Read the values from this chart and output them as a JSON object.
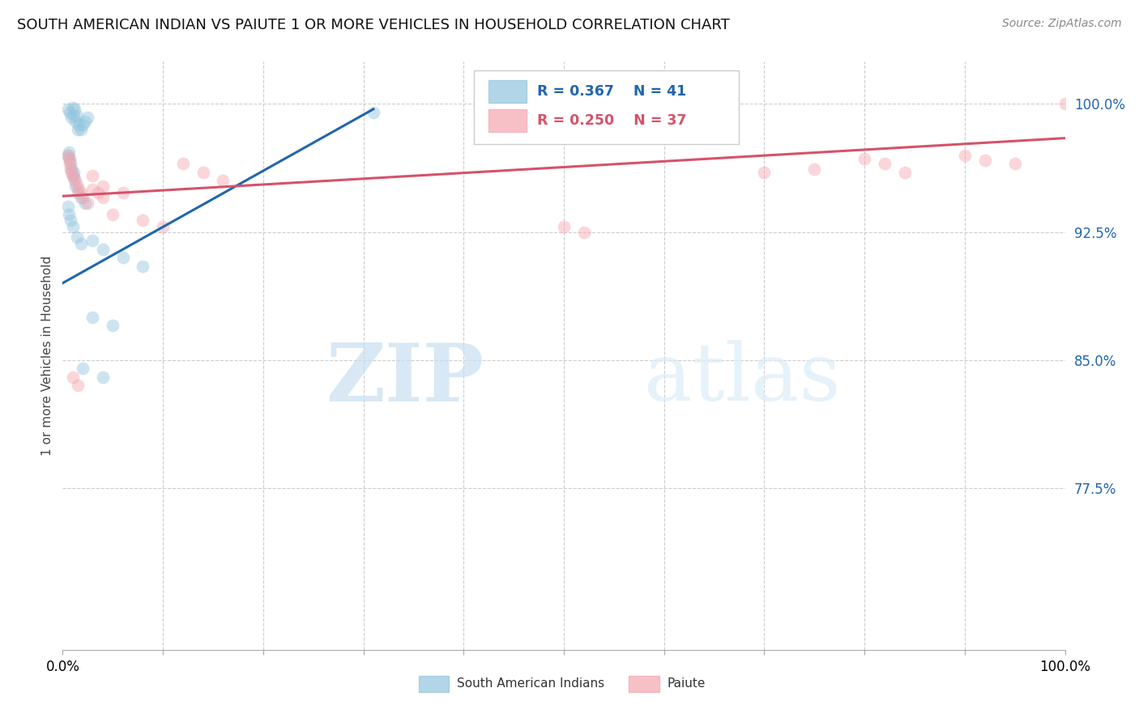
{
  "title": "SOUTH AMERICAN INDIAN VS PAIUTE 1 OR MORE VEHICLES IN HOUSEHOLD CORRELATION CHART",
  "source": "Source: ZipAtlas.com",
  "ylabel": "1 or more Vehicles in Household",
  "ytick_values": [
    1.0,
    0.925,
    0.85,
    0.775
  ],
  "xlim": [
    0.0,
    1.0
  ],
  "ylim": [
    0.68,
    1.025
  ],
  "legend1_r": "R = 0.367",
  "legend1_n": "N = 41",
  "legend2_r": "R = 0.250",
  "legend2_n": "N = 37",
  "blue_color": "#92c5de",
  "pink_color": "#f4a6b0",
  "blue_line_color": "#2166ac",
  "pink_line_color": "#d6526a",
  "blue_scatter_x": [
    0.005,
    0.007,
    0.009,
    0.01,
    0.011,
    0.012,
    0.013,
    0.014,
    0.015,
    0.016,
    0.018,
    0.02,
    0.022,
    0.025,
    0.005,
    0.006,
    0.007,
    0.008,
    0.009,
    0.01,
    0.011,
    0.012,
    0.013,
    0.015,
    0.018,
    0.022,
    0.005,
    0.006,
    0.008,
    0.01,
    0.014,
    0.018,
    0.03,
    0.04,
    0.06,
    0.08,
    0.03,
    0.05,
    0.02,
    0.04,
    0.31
  ],
  "blue_scatter_y": [
    0.997,
    0.995,
    0.992,
    0.998,
    0.993,
    0.997,
    0.99,
    0.993,
    0.985,
    0.988,
    0.985,
    0.988,
    0.99,
    0.992,
    0.97,
    0.972,
    0.968,
    0.965,
    0.962,
    0.958,
    0.96,
    0.956,
    0.952,
    0.948,
    0.945,
    0.942,
    0.94,
    0.935,
    0.932,
    0.928,
    0.922,
    0.918,
    0.92,
    0.915,
    0.91,
    0.905,
    0.875,
    0.87,
    0.845,
    0.84,
    0.995
  ],
  "pink_scatter_x": [
    0.005,
    0.006,
    0.007,
    0.008,
    0.009,
    0.01,
    0.012,
    0.014,
    0.016,
    0.018,
    0.02,
    0.025,
    0.03,
    0.035,
    0.04,
    0.03,
    0.04,
    0.06,
    0.05,
    0.08,
    0.1,
    0.12,
    0.14,
    0.16,
    0.5,
    0.52,
    0.7,
    0.75,
    0.8,
    0.82,
    0.84,
    0.9,
    0.92,
    0.95,
    0.01,
    0.015,
    1.0
  ],
  "pink_scatter_y": [
    0.97,
    0.968,
    0.965,
    0.962,
    0.96,
    0.958,
    0.955,
    0.953,
    0.95,
    0.948,
    0.945,
    0.942,
    0.95,
    0.948,
    0.945,
    0.958,
    0.952,
    0.948,
    0.935,
    0.932,
    0.928,
    0.965,
    0.96,
    0.955,
    0.928,
    0.925,
    0.96,
    0.962,
    0.968,
    0.965,
    0.96,
    0.97,
    0.967,
    0.965,
    0.84,
    0.835,
    1.0
  ],
  "blue_line_x": [
    0.0,
    0.31
  ],
  "blue_line_y": [
    0.895,
    0.997
  ],
  "pink_line_x": [
    0.0,
    1.0
  ],
  "pink_line_y": [
    0.946,
    0.98
  ],
  "watermark_zip": "ZIP",
  "watermark_atlas": "atlas",
  "marker_size": 130,
  "marker_alpha": 0.45
}
